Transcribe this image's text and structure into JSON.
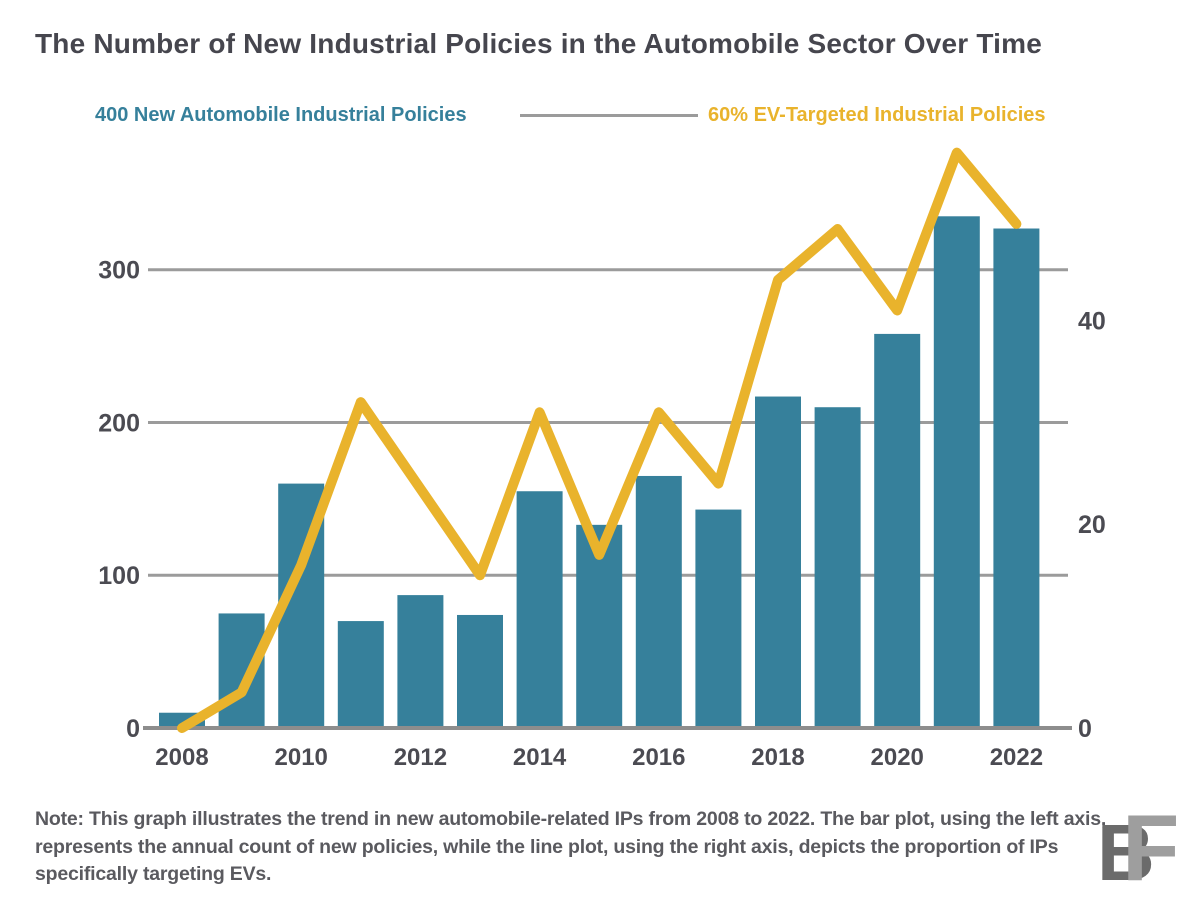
{
  "title": "The Number of New Industrial Policies in the Automobile Sector Over Time",
  "legend": {
    "left_label": "400 New Automobile Industrial Policies",
    "right_label": "60% EV-Targeted Industrial Policies"
  },
  "note": "Note: This graph illustrates the trend in new automobile-related IPs from 2008 to 2022. The bar plot, using the left axis, represents the annual count of new policies, while the line plot, using the right axis, depicts the proportion of IPs specifically targeting EVs.",
  "logo": {
    "letter_back": "B",
    "letter_front": "F"
  },
  "colors": {
    "background": "#ffffff",
    "bar": "#36809b",
    "line": "#e9b32c",
    "title": "#46464e",
    "tick": "#4b4b52",
    "grid": "#9b9b9b",
    "axis": "#8d8d8d",
    "note": "#5a5a5f",
    "legend_left": "#36809b",
    "legend_right": "#e9b32c",
    "logo_back": "#6b6b6b",
    "logo_front": "#9e9e9e"
  },
  "chart_data": {
    "type": "combo-bar-line",
    "categories": [
      2008,
      2009,
      2010,
      2011,
      2012,
      2013,
      2014,
      2015,
      2016,
      2017,
      2018,
      2019,
      2020,
      2021,
      2022
    ],
    "series": [
      {
        "name": "New Automobile Industrial Policies",
        "type": "bar",
        "axis": "left",
        "values": [
          10,
          75,
          160,
          70,
          87,
          74,
          155,
          133,
          165,
          143,
          217,
          210,
          258,
          335,
          327
        ]
      },
      {
        "name": "EV-Targeted Industrial Policies (%)",
        "type": "line",
        "axis": "right",
        "values": [
          0,
          3.5,
          16,
          32,
          23.5,
          15,
          31,
          17,
          31,
          24,
          44,
          49,
          41,
          56.5,
          49.5
        ]
      }
    ],
    "left_axis": {
      "ticks": [
        0,
        100,
        200,
        300
      ],
      "range": [
        0,
        400
      ],
      "label": "400 New Automobile Industrial Policies"
    },
    "right_axis": {
      "ticks": [
        0,
        20,
        40
      ],
      "range": [
        0,
        60
      ],
      "unit": "%",
      "label": "60% EV-Targeted Industrial Policies"
    },
    "x_ticks": [
      2008,
      2010,
      2012,
      2014,
      2016,
      2018,
      2020,
      2022
    ],
    "grid": "horizontal",
    "legend_position": "top"
  }
}
